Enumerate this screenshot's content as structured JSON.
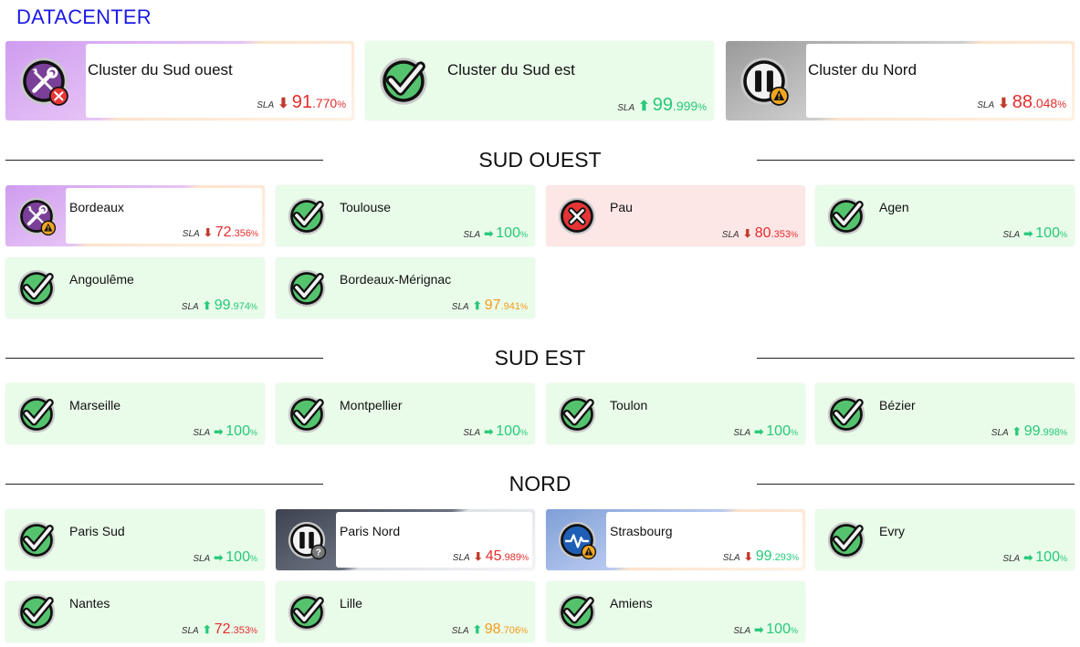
{
  "title": "DATACENTER",
  "sla_label": "SLA",
  "pct": "%",
  "clusters": [
    {
      "name": "Cluster du Sud ouest",
      "state": "maintenance-error",
      "trend": "down",
      "sla_int": "91",
      "sla_dec": ".770",
      "sla_color": "red"
    },
    {
      "name": "Cluster du Sud est",
      "state": "ok",
      "trend": "up",
      "sla_int": "99",
      "sla_dec": ".999",
      "sla_color": "green"
    },
    {
      "name": "Cluster du Nord",
      "state": "paused-warning",
      "trend": "down",
      "sla_int": "88",
      "sla_dec": ".048",
      "sla_color": "red"
    }
  ],
  "sections": [
    {
      "title": "SUD OUEST",
      "sites": [
        {
          "name": "Bordeaux",
          "state": "maintenance-warning",
          "trend": "down",
          "sla_int": "72",
          "sla_dec": ".356",
          "sla_color": "red"
        },
        {
          "name": "Toulouse",
          "state": "ok",
          "trend": "right",
          "sla_int": "100",
          "sla_dec": "",
          "sla_color": "green"
        },
        {
          "name": "Pau",
          "state": "error",
          "trend": "down",
          "sla_int": "80",
          "sla_dec": ".353",
          "sla_color": "red"
        },
        {
          "name": "Agen",
          "state": "ok",
          "trend": "right",
          "sla_int": "100",
          "sla_dec": "",
          "sla_color": "green"
        },
        {
          "name": "Angoulême",
          "state": "ok",
          "trend": "up",
          "sla_int": "99",
          "sla_dec": ".974",
          "sla_color": "green"
        },
        {
          "name": "Bordeaux-Mérignac",
          "state": "ok",
          "trend": "up",
          "sla_int": "97",
          "sla_dec": ".941",
          "sla_color": "orange"
        }
      ]
    },
    {
      "title": "SUD EST",
      "sites": [
        {
          "name": "Marseille",
          "state": "ok",
          "trend": "right",
          "sla_int": "100",
          "sla_dec": "",
          "sla_color": "green"
        },
        {
          "name": "Montpellier",
          "state": "ok",
          "trend": "right",
          "sla_int": "100",
          "sla_dec": "",
          "sla_color": "green"
        },
        {
          "name": "Toulon",
          "state": "ok",
          "trend": "right",
          "sla_int": "100",
          "sla_dec": "",
          "sla_color": "green"
        },
        {
          "name": "Bézier",
          "state": "ok",
          "trend": "up",
          "sla_int": "99",
          "sla_dec": ".998",
          "sla_color": "green"
        }
      ]
    },
    {
      "title": "NORD",
      "sites": [
        {
          "name": "Paris Sud",
          "state": "ok",
          "trend": "right",
          "sla_int": "100",
          "sla_dec": "",
          "sla_color": "green"
        },
        {
          "name": "Paris Nord",
          "state": "paused-unknown",
          "trend": "down",
          "sla_int": "45",
          "sla_dec": ".989",
          "sla_color": "red"
        },
        {
          "name": "Strasbourg",
          "state": "monitor-warning",
          "trend": "down",
          "sla_int": "99",
          "sla_dec": ".293",
          "sla_color": "green"
        },
        {
          "name": "Evry",
          "state": "ok",
          "trend": "right",
          "sla_int": "100",
          "sla_dec": "",
          "sla_color": "green"
        },
        {
          "name": "Nantes",
          "state": "ok",
          "trend": "up",
          "sla_int": "72",
          "sla_dec": ".353",
          "sla_color": "red"
        },
        {
          "name": "Lille",
          "state": "ok",
          "trend": "up",
          "sla_int": "98",
          "sla_dec": ".706",
          "sla_color": "orange"
        },
        {
          "name": "Amiens",
          "state": "ok",
          "trend": "right",
          "sla_int": "100",
          "sla_dec": "",
          "sla_color": "green"
        }
      ]
    }
  ]
}
